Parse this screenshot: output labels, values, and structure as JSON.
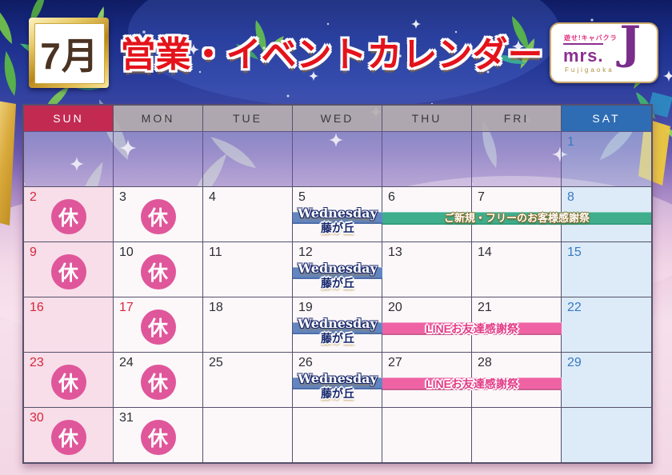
{
  "header": {
    "month_badge": "7月",
    "title": "営業・イベントカレンダー",
    "logo": {
      "tagline": "遊せ!キャバクラ",
      "brand": "mrs.",
      "initial": "J",
      "location": "Fujigaoka"
    }
  },
  "calendar": {
    "day_headers": [
      "SUN",
      "MON",
      "TUE",
      "WED",
      "THU",
      "FRI",
      "SAT"
    ],
    "weeks": [
      [
        "",
        "",
        "",
        "",
        "",
        "",
        "1"
      ],
      [
        "2",
        "3",
        "4",
        "5",
        "6",
        "7",
        "8"
      ],
      [
        "9",
        "10",
        "11",
        "12",
        "13",
        "14",
        "15"
      ],
      [
        "16",
        "17",
        "18",
        "19",
        "20",
        "21",
        "22"
      ],
      [
        "23",
        "24",
        "25",
        "26",
        "27",
        "28",
        "29"
      ],
      [
        "30",
        "31",
        "",
        "",
        "",
        "",
        ""
      ]
    ],
    "closed_label": "休",
    "closed_days": [
      "2",
      "3",
      "9",
      "10",
      "17",
      "23",
      "24",
      "30",
      "31"
    ],
    "red_days": [
      "2",
      "9",
      "16",
      "17",
      "23",
      "30"
    ],
    "events": {
      "wednesday": {
        "line1": "Wednesday",
        "line2": "藤が丘",
        "placements": [
          {
            "row": 1,
            "col": 3
          },
          {
            "row": 2,
            "col": 3
          },
          {
            "row": 3,
            "col": 3
          },
          {
            "row": 4,
            "col": 3
          }
        ]
      },
      "banners": [
        {
          "row": 1,
          "col_start": 4,
          "col_span": 3,
          "theme": "green",
          "label": "ご新規・フリーのお客様感謝祭"
        },
        {
          "row": 3,
          "col_start": 4,
          "col_span": 2,
          "theme": "pink",
          "label": "LINEお友達感謝祭"
        },
        {
          "row": 4,
          "col_start": 4,
          "col_span": 2,
          "theme": "pink",
          "label": "LINEお友達感謝祭"
        }
      ]
    }
  },
  "colors": {
    "title_red": "#e4131b",
    "sun_header": "#c22a52",
    "weekday_header": "#b7aeb0",
    "sat_header": "#2e6cb3",
    "sunday_number": "#d6273b",
    "saturday_number": "#3a79c3",
    "closed_circle": "#e0569a",
    "wednesday_ribbon": "#6186c5",
    "banner_green": "#3fae8d",
    "banner_pink": "#ef63a4"
  }
}
